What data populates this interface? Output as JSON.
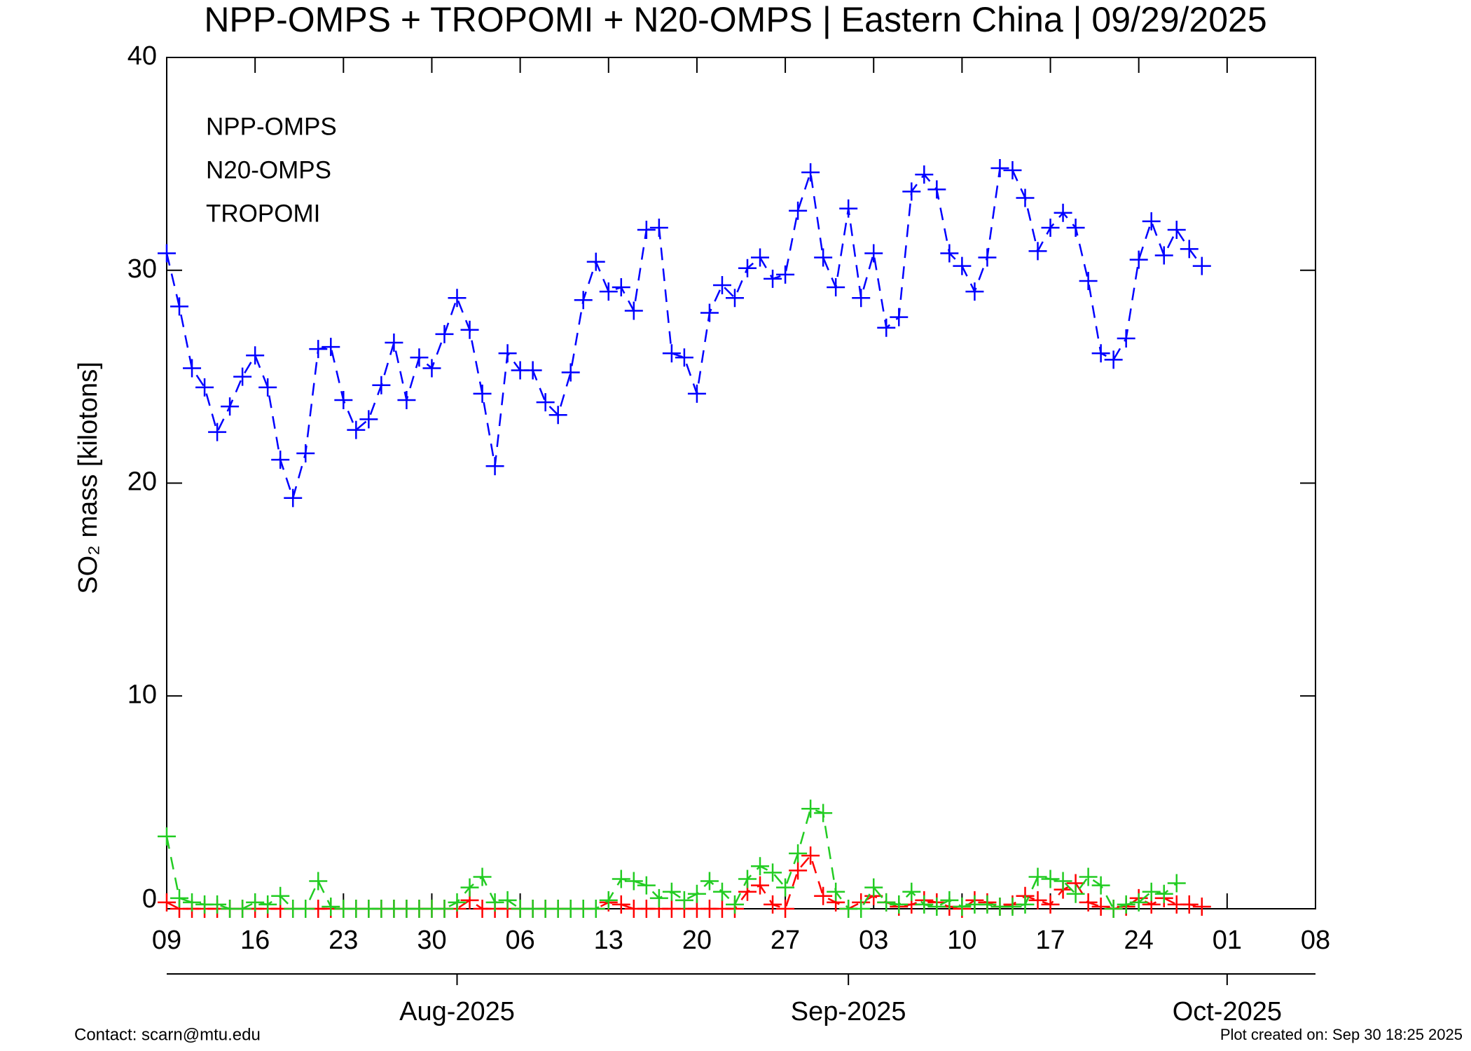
{
  "chart_data": {
    "type": "line",
    "title": "NPP-OMPS + TROPOMI + N20-OMPS | Eastern China | 09/29/2025",
    "y_label": "SO₂ mass [kilotons]",
    "x": [
      "2025-07-09",
      "2025-07-10",
      "2025-07-11",
      "2025-07-12",
      "2025-07-13",
      "2025-07-14",
      "2025-07-15",
      "2025-07-16",
      "2025-07-17",
      "2025-07-18",
      "2025-07-19",
      "2025-07-20",
      "2025-07-21",
      "2025-07-22",
      "2025-07-23",
      "2025-07-24",
      "2025-07-25",
      "2025-07-26",
      "2025-07-27",
      "2025-07-28",
      "2025-07-29",
      "2025-07-30",
      "2025-07-31",
      "2025-08-01",
      "2025-08-02",
      "2025-08-03",
      "2025-08-04",
      "2025-08-05",
      "2025-08-06",
      "2025-08-07",
      "2025-08-08",
      "2025-08-09",
      "2025-08-10",
      "2025-08-11",
      "2025-08-12",
      "2025-08-13",
      "2025-08-14",
      "2025-08-15",
      "2025-08-16",
      "2025-08-17",
      "2025-08-18",
      "2025-08-19",
      "2025-08-20",
      "2025-08-21",
      "2025-08-22",
      "2025-08-23",
      "2025-08-24",
      "2025-08-25",
      "2025-08-26",
      "2025-08-27",
      "2025-08-28",
      "2025-08-29",
      "2025-08-30",
      "2025-08-31",
      "2025-09-01",
      "2025-09-02",
      "2025-09-03",
      "2025-09-04",
      "2025-09-05",
      "2025-09-06",
      "2025-09-07",
      "2025-09-08",
      "2025-09-09",
      "2025-09-10",
      "2025-09-11",
      "2025-09-12",
      "2025-09-13",
      "2025-09-14",
      "2025-09-15",
      "2025-09-16",
      "2025-09-17",
      "2025-09-18",
      "2025-09-19",
      "2025-09-20",
      "2025-09-21",
      "2025-09-22",
      "2025-09-23",
      "2025-09-24",
      "2025-09-25",
      "2025-09-26",
      "2025-09-27",
      "2025-09-28",
      "2025-09-29"
    ],
    "series": [
      {
        "name": "NPP-OMPS",
        "color": "#ff0000",
        "values": [
          0.3,
          0,
          0,
          0,
          0,
          0,
          0,
          0,
          0,
          0,
          0,
          0,
          0,
          0,
          0,
          0,
          0,
          0,
          0,
          0,
          0,
          0,
          0,
          0,
          0.4,
          0,
          0,
          0,
          0,
          0,
          0,
          0,
          0,
          0,
          0,
          0.3,
          0.2,
          0,
          0,
          0,
          0,
          0,
          0,
          0,
          0,
          0,
          0.8,
          1.1,
          0.2,
          0,
          1.8,
          2.5,
          0.6,
          0.3,
          0,
          0.3,
          0.6,
          0.3,
          0.1,
          0.2,
          0.4,
          0.3,
          0.1,
          0,
          0.4,
          0.3,
          0.1,
          0.2,
          0.6,
          0.4,
          0.2,
          0.9,
          1.2,
          0.3,
          0.1,
          0,
          0.1,
          0.5,
          0.2,
          0.5,
          0.2,
          0.2,
          0.1
        ]
      },
      {
        "name": "N20-OMPS",
        "color": "#0000ff",
        "values": [
          30.8,
          28.3,
          25.4,
          24.5,
          22.4,
          23.6,
          25.0,
          26.0,
          24.5,
          21.1,
          19.3,
          21.4,
          26.3,
          26.4,
          23.9,
          22.5,
          23.0,
          24.6,
          26.6,
          23.9,
          25.9,
          25.4,
          27.0,
          28.7,
          27.2,
          24.2,
          20.8,
          26.1,
          25.3,
          25.3,
          23.8,
          23.2,
          25.2,
          28.6,
          30.4,
          29.0,
          29.2,
          28.1,
          31.9,
          32.0,
          26.1,
          25.9,
          24.2,
          28.0,
          29.3,
          28.7,
          30.1,
          30.6,
          29.6,
          29.8,
          32.8,
          34.6,
          30.6,
          29.2,
          32.9,
          28.7,
          30.8,
          27.3,
          27.8,
          33.7,
          34.5,
          33.8,
          30.8,
          30.2,
          29.0,
          30.6,
          34.8,
          34.7,
          33.4,
          30.9,
          32.0,
          32.7,
          32.0,
          29.5,
          26.1,
          25.8,
          26.8,
          30.5,
          32.3,
          30.7,
          31.9,
          31.0,
          30.2
        ]
      },
      {
        "name": "TROPOMI",
        "color": "#22cc22",
        "values": [
          3.4,
          0.5,
          0.3,
          0.2,
          0.2,
          0,
          0,
          0.3,
          0.2,
          0.6,
          0,
          0,
          1.3,
          0.1,
          0,
          0,
          0,
          0,
          0,
          0,
          0,
          0,
          0,
          0.3,
          1.0,
          1.5,
          0.3,
          0.4,
          0,
          0,
          0,
          0,
          0,
          0,
          0,
          0.4,
          1.4,
          1.3,
          1.1,
          0.5,
          0.8,
          0.4,
          0.7,
          1.3,
          0.8,
          0.2,
          1.4,
          2.0,
          1.7,
          1.0,
          2.6,
          4.7,
          4.5,
          0.8,
          0,
          0,
          1.0,
          0.3,
          0.2,
          0.8,
          0.2,
          0.1,
          0.4,
          0.1,
          0.2,
          0.2,
          0.1,
          0.1,
          0.2,
          1.5,
          1.4,
          1.3,
          0.7,
          1.5,
          1.1,
          0,
          0.2,
          0.3,
          0.8,
          0.7,
          1.2,
          null,
          null
        ]
      }
    ],
    "xlim": [
      "2025-07-09",
      "2025-10-08"
    ],
    "xticks": [
      {
        "value": "2025-07-09",
        "label": "09"
      },
      {
        "value": "2025-07-16",
        "label": "16"
      },
      {
        "value": "2025-07-23",
        "label": "23"
      },
      {
        "value": "2025-07-30",
        "label": "30"
      },
      {
        "value": "2025-08-06",
        "label": "06"
      },
      {
        "value": "2025-08-13",
        "label": "13"
      },
      {
        "value": "2025-08-20",
        "label": "20"
      },
      {
        "value": "2025-08-27",
        "label": "27"
      },
      {
        "value": "2025-09-03",
        "label": "03"
      },
      {
        "value": "2025-09-10",
        "label": "10"
      },
      {
        "value": "2025-09-17",
        "label": "17"
      },
      {
        "value": "2025-09-24",
        "label": "24"
      },
      {
        "value": "2025-10-01",
        "label": "01"
      },
      {
        "value": "2025-10-08",
        "label": "08"
      }
    ],
    "month_ticks": [
      {
        "value": "2025-08-01",
        "label": "Aug-2025"
      },
      {
        "value": "2025-09-01",
        "label": "Sep-2025"
      },
      {
        "value": "2025-10-01",
        "label": "Oct-2025"
      }
    ],
    "ylim": [
      0,
      40
    ],
    "yticks": [
      0,
      10,
      20,
      30,
      40
    ],
    "line_style": "dashed",
    "marker": "plus",
    "legend": "upper left",
    "footer_left": "Contact: scarn@mtu.edu",
    "footer_right": "Plot created on: Sep 30 18:25 2025",
    "footer_color": "#ff0000"
  }
}
